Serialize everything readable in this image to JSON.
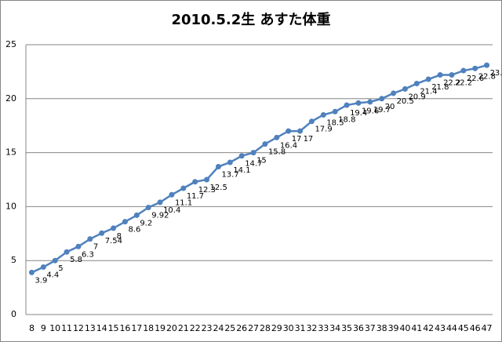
{
  "chart_data": {
    "type": "line",
    "title": "2010.5.2生 あすた体重",
    "categories": [
      "8",
      "9",
      "10",
      "11",
      "12",
      "13",
      "14",
      "15",
      "16",
      "17",
      "18",
      "19",
      "20",
      "21",
      "22",
      "23",
      "24",
      "25",
      "26",
      "27",
      "28",
      "29",
      "30",
      "31",
      "32",
      "33",
      "34",
      "35",
      "36",
      "37",
      "38",
      "39",
      "40",
      "41",
      "42",
      "43",
      "44",
      "45",
      "46",
      "47"
    ],
    "series": [
      {
        "name": "体重",
        "color": "#4f81bd",
        "values": [
          3.9,
          4.4,
          5,
          5.8,
          6.3,
          7,
          7.54,
          8,
          8.6,
          9.2,
          9.92,
          10.4,
          11.1,
          11.7,
          12.3,
          12.5,
          13.7,
          14.1,
          14.7,
          15,
          15.8,
          16.4,
          17,
          17,
          17.9,
          18.5,
          18.8,
          19.4,
          19.6,
          19.7,
          20,
          20.5,
          20.9,
          21.4,
          21.8,
          22.2,
          22.2,
          22.6,
          22.8,
          23.1
        ]
      }
    ],
    "ylim": [
      0,
      25
    ],
    "yticks": [
      0,
      5,
      10,
      15,
      20,
      25
    ],
    "grid": true,
    "data_labels": true
  }
}
